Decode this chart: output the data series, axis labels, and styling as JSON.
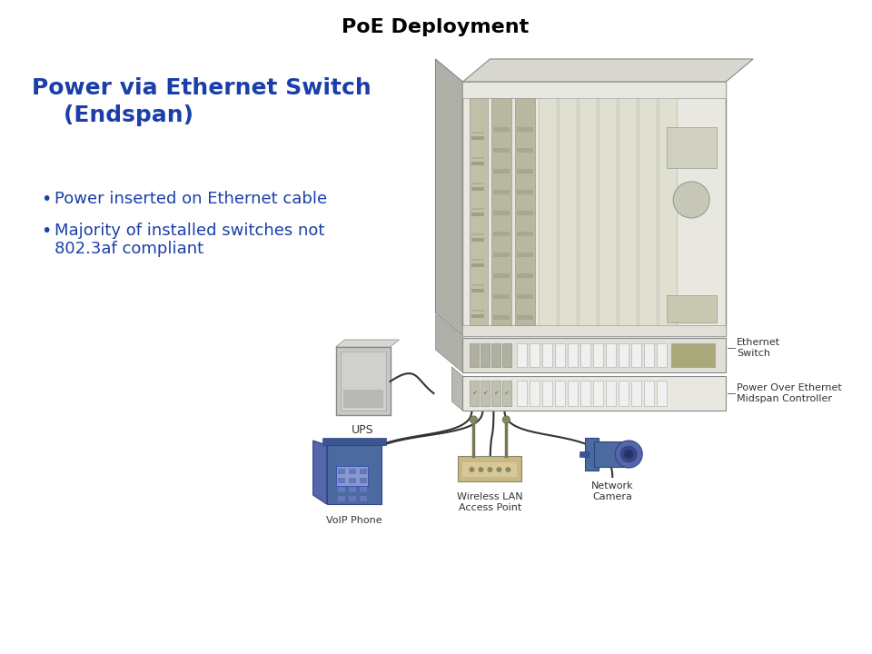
{
  "title": "PoE Deployment",
  "title_color": "#000000",
  "title_fontsize": 16,
  "subtitle_line1": "Power via Ethernet Switch",
  "subtitle_line2": "    (Endspan)",
  "subtitle_color": "#1a3faa",
  "subtitle_fontsize": 18,
  "bullet1": "Power inserted on Ethernet cable",
  "bullet2_line1": "Majority of installed switches not",
  "bullet2_line2": "802.3af compliant",
  "bullet_color": "#1a3faa",
  "bullet_fontsize": 13,
  "background_color": "#ffffff",
  "label_color": "#333333",
  "label_fontsize": 8,
  "sw_face_color": "#e8e8e0",
  "sw_card_color": "#b8b8a0",
  "sw_side_color": "#a8a8a0",
  "sw_top_color": "#d8d8d0",
  "ctrl_face_color": "#e0e0d8",
  "ctrl_port_color": "#c8c8b8",
  "ups_color": "#c0c0c0",
  "device_color": "#4a6aa0",
  "cable_color": "#333333"
}
